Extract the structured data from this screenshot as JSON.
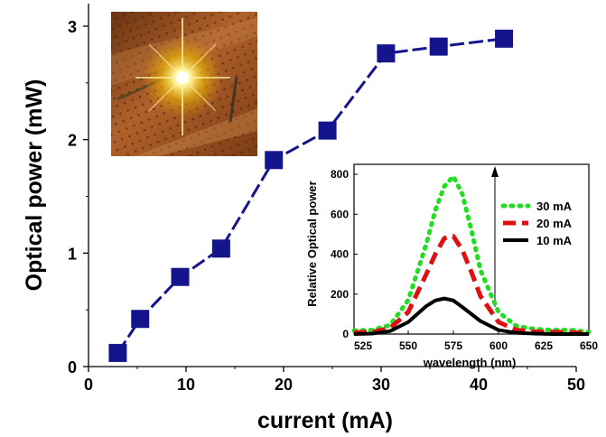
{
  "chart_data": [
    {
      "type": "line",
      "title": "",
      "xlabel": "current (mA)",
      "ylabel": "Optical power (mW)",
      "xlim": [
        0,
        50
      ],
      "ylim": [
        0,
        3
      ],
      "xticks": [
        0,
        10,
        20,
        30,
        40,
        50
      ],
      "yticks": [
        0,
        1,
        2,
        3
      ],
      "grid": false,
      "series": [
        {
          "x": [
            3.0,
            5.3,
            9.4,
            13.6,
            19.0,
            24.5,
            30.5,
            35.9,
            42.6
          ],
          "y": [
            0.12,
            0.42,
            0.79,
            1.04,
            1.82,
            2.08,
            2.76,
            2.82,
            2.89
          ],
          "marker": "square",
          "line_style": "dashed",
          "color": "#14148c"
        }
      ]
    },
    {
      "type": "line",
      "title": "",
      "xlabel": "wavelength (nm)",
      "ylabel": "Relative Optical power",
      "xlim": [
        520,
        650
      ],
      "ylim": [
        0,
        850
      ],
      "xticks": [
        525,
        550,
        575,
        600,
        625,
        650
      ],
      "yticks": [
        0,
        200,
        400,
        600,
        800
      ],
      "grid": false,
      "legend_position": "right",
      "series": [
        {
          "name": "30 mA",
          "color": "#22dd22",
          "line_style": "dotted",
          "x": [
            520,
            530,
            540,
            550,
            560,
            565,
            570,
            575,
            580,
            585,
            590,
            600,
            610,
            620,
            630,
            640,
            650
          ],
          "y": [
            18,
            20,
            45,
            170,
            450,
            620,
            740,
            790,
            700,
            520,
            320,
            110,
            40,
            25,
            20,
            20,
            10
          ]
        },
        {
          "name": "20 mA",
          "color": "#dd1111",
          "line_style": "dashed",
          "x": [
            520,
            530,
            540,
            550,
            560,
            565,
            570,
            575,
            580,
            585,
            590,
            600,
            610,
            620,
            630,
            640,
            650
          ],
          "y": [
            8,
            10,
            30,
            110,
            300,
            400,
            480,
            490,
            420,
            310,
            190,
            60,
            20,
            12,
            10,
            8,
            5
          ]
        },
        {
          "name": "10 mA",
          "color": "#000000",
          "line_style": "solid",
          "x": [
            520,
            530,
            540,
            550,
            555,
            560,
            565,
            570,
            575,
            580,
            585,
            590,
            600,
            610,
            620,
            630,
            650
          ],
          "y": [
            0,
            2,
            15,
            60,
            100,
            140,
            168,
            178,
            168,
            135,
            100,
            65,
            20,
            6,
            2,
            0,
            0
          ]
        }
      ]
    }
  ],
  "inset_photo": {
    "description_icon": "glowing-led-photo"
  },
  "colors": {
    "main_series": "#14148c",
    "axis": "#000000"
  }
}
